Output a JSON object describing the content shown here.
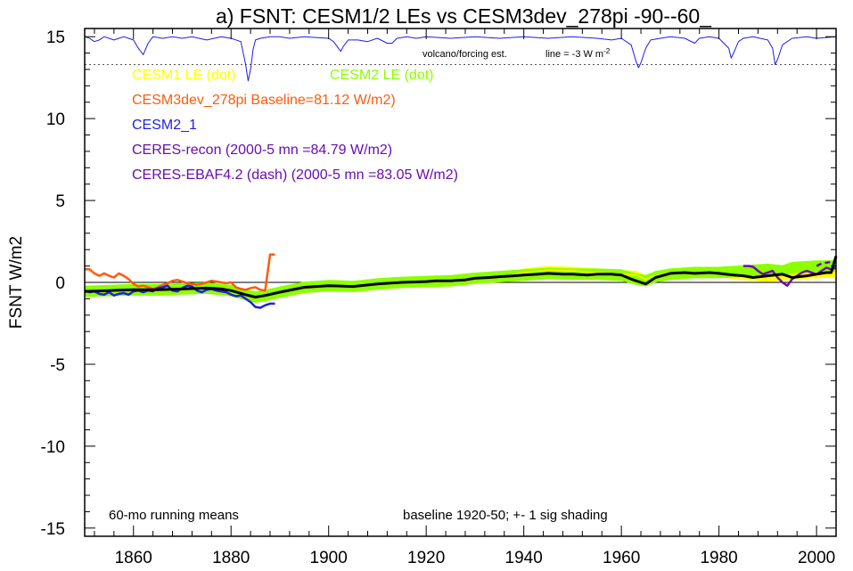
{
  "chart_data": {
    "type": "line",
    "title": "a) FSNT: CESM1/2 LEs vs CESM3dev_278pi -90--60_",
    "ylabel": "FSNT W/m2",
    "xlabel": "",
    "xlim": [
      1850,
      2004
    ],
    "ylim": [
      -15.5,
      15.5
    ],
    "x_ticks": [
      1860,
      1880,
      1900,
      1920,
      1940,
      1960,
      1980,
      2000
    ],
    "x_tick_labels": [
      "1860",
      "1880",
      "1900",
      "1920",
      "1940",
      "1960",
      "1980",
      "2000"
    ],
    "y_ticks": [
      -15,
      -10,
      -5,
      0,
      5,
      10,
      15
    ],
    "y_tick_labels": [
      "-15",
      "-10",
      "-5",
      "0",
      "5",
      "10",
      "15"
    ],
    "zero_line": true,
    "volcano_baseline": 13.3,
    "annotations": {
      "volcano": "volcano/forcing est.",
      "line_scale": "line = -3 W m",
      "line_scale_sup": "-2",
      "running_mean": "60-mo running means",
      "baseline": "baseline 1920-50; +- 1 sig shading"
    },
    "legend": [
      {
        "text": "CESM1 LE (dot)",
        "color": "#ffff00"
      },
      {
        "text": "CESM2 LE (dot)",
        "color": "#8cff00"
      },
      {
        "text": "CESM3dev_278pi Baseline=81.12 W/m2)",
        "color": "#ff5a0a"
      },
      {
        "text": "CESM2_1",
        "color": "#1e1ee6"
      },
      {
        "text": "CERES-recon (2000-5 mn =84.79 W/m2)",
        "color": "#6a0dad"
      },
      {
        "text": "CERES-EBAF4.2 (dash) (2000-5 mn =83.05 W/m2)",
        "color": "#6a0dad"
      }
    ],
    "series": [
      {
        "name": "volcano/forcing est.",
        "color": "#1e1ee6",
        "x": [
          1850,
          1851,
          1852,
          1853,
          1854,
          1855,
          1856,
          1857,
          1858,
          1859,
          1860,
          1861,
          1862,
          1863,
          1864,
          1866,
          1868,
          1870,
          1872,
          1875,
          1878,
          1880,
          1882,
          1883,
          1883.5,
          1884,
          1884.5,
          1885,
          1886,
          1888,
          1890,
          1892,
          1895,
          1900,
          1901,
          1902,
          1902.5,
          1903,
          1904,
          1906,
          1908,
          1910,
          1912,
          1913,
          1914,
          1916,
          1918,
          1920,
          1925,
          1930,
          1935,
          1940,
          1945,
          1950,
          1955,
          1958,
          1960,
          1962,
          1963,
          1963.5,
          1964,
          1965,
          1966,
          1968,
          1970,
          1973,
          1975,
          1976,
          1978,
          1980,
          1982,
          1982.5,
          1983,
          1984,
          1985,
          1987,
          1990,
          1991,
          1991.5,
          1992,
          1993,
          1995,
          1998,
          2000,
          2004
        ],
        "y": [
          15.0,
          14.9,
          14.7,
          14.8,
          15.0,
          14.9,
          14.8,
          14.9,
          15.0,
          14.9,
          14.8,
          14.3,
          13.9,
          14.6,
          15.0,
          14.9,
          15.0,
          14.9,
          15.0,
          14.8,
          15.0,
          14.9,
          14.7,
          13.3,
          12.3,
          13.0,
          14.2,
          14.8,
          14.9,
          15.0,
          15.0,
          14.9,
          15.0,
          14.9,
          14.7,
          14.3,
          14.1,
          14.4,
          14.8,
          14.8,
          14.7,
          14.9,
          14.6,
          14.6,
          14.9,
          15.0,
          14.9,
          15.0,
          14.9,
          15.0,
          14.9,
          15.0,
          14.9,
          15.0,
          14.9,
          14.8,
          14.9,
          14.5,
          13.5,
          13.1,
          13.4,
          14.3,
          14.8,
          14.9,
          15.0,
          14.9,
          14.6,
          14.9,
          15.0,
          14.9,
          14.3,
          13.7,
          14.0,
          14.7,
          14.9,
          15.0,
          14.8,
          14.3,
          13.3,
          13.6,
          14.5,
          14.9,
          15.0,
          14.9,
          15.0
        ]
      },
      {
        "name": "CESM1 LE (dot)",
        "color": "#ffff00",
        "x": [
          1920,
          1925,
          1930,
          1935,
          1940,
          1945,
          1950,
          1955,
          1960,
          1963,
          1965,
          1967,
          1970,
          1975,
          1980,
          1985,
          1990,
          1995,
          2000,
          2004
        ],
        "y": [
          0.1,
          0.05,
          0.2,
          0.3,
          0.6,
          0.75,
          0.7,
          0.6,
          0.5,
          0.45,
          0.2,
          0.4,
          0.6,
          0.6,
          0.55,
          0.4,
          0.3,
          0.4,
          0.5,
          0.55
        ],
        "band": 0.25
      },
      {
        "name": "CESM2 LE (dot)",
        "color": "#8cff00",
        "x": [
          1850,
          1855,
          1860,
          1865,
          1870,
          1875,
          1880,
          1883,
          1885,
          1887,
          1890,
          1895,
          1900,
          1905,
          1910,
          1915,
          1920,
          1925,
          1930,
          1935,
          1940,
          1945,
          1950,
          1955,
          1960,
          1963,
          1965,
          1967,
          1970,
          1975,
          1980,
          1985,
          1990,
          1993,
          1995,
          2000,
          2004
        ],
        "y": [
          -0.55,
          -0.5,
          -0.45,
          -0.45,
          -0.4,
          -0.35,
          -0.5,
          -0.75,
          -0.9,
          -0.8,
          -0.6,
          -0.3,
          -0.2,
          -0.25,
          -0.1,
          0.0,
          0.05,
          0.1,
          0.25,
          0.35,
          0.45,
          0.55,
          0.5,
          0.5,
          0.45,
          0.2,
          0.1,
          0.35,
          0.5,
          0.6,
          0.6,
          0.7,
          0.8,
          0.7,
          0.9,
          1.0,
          1.0
        ],
        "band": 0.35
      },
      {
        "name": "CESM3dev_278pi",
        "color": "#ff5a0a",
        "x": [
          1850,
          1851,
          1852,
          1853,
          1854,
          1855,
          1856,
          1857,
          1858,
          1859,
          1860,
          1861,
          1862,
          1863,
          1864,
          1865,
          1866,
          1867,
          1868,
          1869,
          1870,
          1871,
          1872,
          1873,
          1874,
          1875,
          1876,
          1877,
          1878,
          1879,
          1880,
          1881,
          1882,
          1883,
          1884,
          1885,
          1886,
          1887,
          1888,
          1889
        ],
        "y": [
          0.8,
          0.8,
          0.55,
          0.4,
          0.55,
          0.4,
          0.3,
          0.55,
          0.4,
          0.2,
          -0.1,
          -0.25,
          -0.2,
          -0.3,
          -0.4,
          -0.3,
          -0.15,
          -0.05,
          0.1,
          0.15,
          0.05,
          -0.05,
          -0.1,
          -0.15,
          -0.1,
          0.0,
          0.1,
          0.05,
          0.0,
          -0.05,
          0.0,
          -0.3,
          -0.4,
          -0.45,
          -0.35,
          -0.3,
          -0.45,
          -0.5,
          1.7,
          1.7
        ]
      },
      {
        "name": "CESM2_1",
        "color": "#1e1ee6",
        "x": [
          1850,
          1851,
          1852,
          1853,
          1854,
          1855,
          1856,
          1857,
          1858,
          1859,
          1860,
          1861,
          1862,
          1863,
          1864,
          1865,
          1866,
          1867,
          1868,
          1869,
          1870,
          1871,
          1872,
          1873,
          1874,
          1875,
          1876,
          1877,
          1878,
          1879,
          1880,
          1881,
          1882,
          1883,
          1884,
          1885,
          1886,
          1887,
          1888,
          1889
        ],
        "y": [
          -0.5,
          -0.6,
          -0.55,
          -0.7,
          -0.75,
          -0.6,
          -0.8,
          -0.7,
          -0.65,
          -0.75,
          -0.55,
          -0.5,
          -0.6,
          -0.5,
          -0.55,
          -0.35,
          -0.3,
          -0.2,
          -0.5,
          -0.55,
          -0.35,
          -0.2,
          -0.25,
          -0.5,
          -0.6,
          -0.45,
          -0.4,
          -0.5,
          -0.55,
          -0.6,
          -0.75,
          -0.85,
          -0.8,
          -1.0,
          -1.2,
          -1.5,
          -1.55,
          -1.4,
          -1.3,
          -1.3
        ]
      },
      {
        "name": "CERES-recon",
        "color": "#6a0dad",
        "x": [
          1985,
          1986,
          1987,
          1988,
          1989,
          1990,
          1991,
          1992,
          1993,
          1994,
          1995,
          1996,
          1997,
          1998,
          1999,
          2000,
          2001,
          2002,
          2003,
          2004
        ],
        "y": [
          1.0,
          1.0,
          0.95,
          0.7,
          0.5,
          0.6,
          0.7,
          0.3,
          0.0,
          -0.2,
          0.2,
          0.4,
          0.6,
          0.7,
          0.6,
          0.5,
          0.7,
          0.9,
          0.8,
          0.9
        ]
      },
      {
        "name": "CERES-EBAF4.2 (dash)",
        "color": "#6a0dad",
        "dash": true,
        "x": [
          2000,
          2001,
          2002,
          2003,
          2004
        ],
        "y": [
          1.0,
          1.15,
          1.2,
          1.25,
          1.3
        ]
      },
      {
        "name": "ensemble mean",
        "color": "#000000",
        "x": [
          1850,
          1855,
          1860,
          1865,
          1870,
          1875,
          1878,
          1880,
          1883,
          1885,
          1887,
          1890,
          1895,
          1900,
          1905,
          1910,
          1915,
          1920,
          1922,
          1925,
          1928,
          1930,
          1933,
          1935,
          1938,
          1940,
          1943,
          1945,
          1948,
          1950,
          1953,
          1955,
          1958,
          1960,
          1962,
          1964,
          1965,
          1967,
          1970,
          1973,
          1975,
          1978,
          1980,
          1983,
          1985,
          1987,
          1990,
          1993,
          1995,
          1998,
          2000,
          2002,
          2003,
          2004
        ],
        "y": [
          -0.55,
          -0.5,
          -0.45,
          -0.45,
          -0.4,
          -0.35,
          -0.4,
          -0.5,
          -0.75,
          -0.9,
          -0.8,
          -0.6,
          -0.3,
          -0.2,
          -0.25,
          -0.1,
          0.0,
          0.05,
          0.1,
          0.1,
          0.15,
          0.25,
          0.3,
          0.35,
          0.4,
          0.45,
          0.5,
          0.55,
          0.5,
          0.5,
          0.45,
          0.5,
          0.5,
          0.45,
          0.2,
          0.0,
          -0.1,
          0.3,
          0.55,
          0.6,
          0.55,
          0.6,
          0.55,
          0.45,
          0.4,
          0.3,
          0.4,
          0.5,
          0.3,
          0.4,
          0.5,
          0.6,
          0.6,
          1.6
        ]
      }
    ]
  }
}
